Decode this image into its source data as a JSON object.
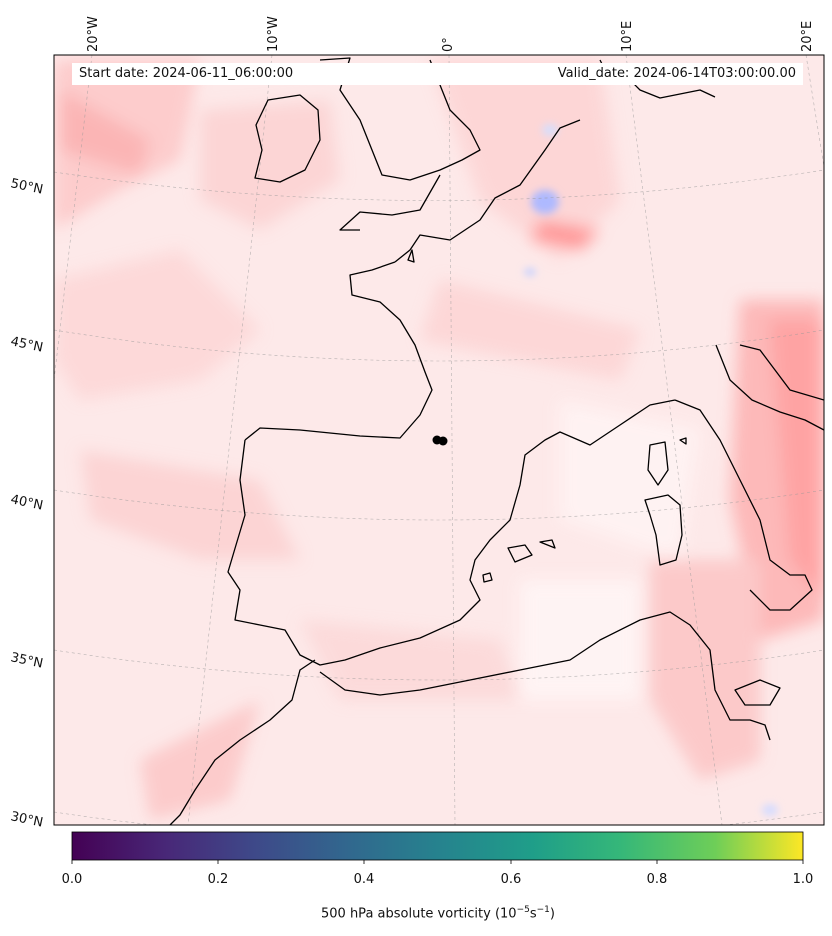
{
  "header": {
    "start_date": "Start date: 2024-06-11_06:00:00",
    "valid_date": "Valid_date: 2024-06-14T03:00:00.00"
  },
  "map": {
    "field": "500 hPa absolute vorticity",
    "projection": "conic",
    "extent": {
      "lon": [
        -22,
        23
      ],
      "lat": [
        30,
        54
      ]
    },
    "longitude_labels": [
      "20°W",
      "10°W",
      "0°",
      "10°E",
      "20°E"
    ],
    "latitude_labels": [
      "50°N",
      "45°N",
      "40°N",
      "35°N",
      "30°N"
    ],
    "colors": {
      "background_field": "#fde8e8",
      "positive_anomaly": "#ff9a9a",
      "negative_anomaly": "#c9d3ff",
      "coastline": "#000000",
      "gridline": "#aaaaaa"
    },
    "marker": {
      "lon": -0.5,
      "lat": 42.3,
      "shape": "black dot"
    }
  },
  "colorbar": {
    "label": "500 hPa absolute vorticity (10",
    "label_exp1": "−5",
    "label_mid": "s",
    "label_exp2": "−1",
    "label_end": ")",
    "colormap": "viridis",
    "range": [
      0.0,
      1.0
    ],
    "ticks": [
      "0.0",
      "0.2",
      "0.4",
      "0.6",
      "0.8",
      "1.0"
    ]
  }
}
